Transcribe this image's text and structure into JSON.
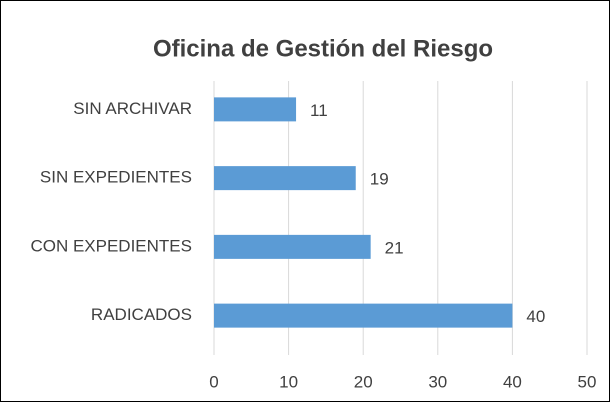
{
  "chart_data": {
    "type": "barh",
    "title": "Oficina de Gestión del Riesgo",
    "categories": [
      "SIN ARCHIVAR",
      "SIN EXPEDIENTES",
      "CON EXPEDIENTES",
      "RADICADOS"
    ],
    "values": [
      11,
      19,
      21,
      40
    ],
    "color": "#5b9bd5",
    "xlim": [
      0,
      50
    ],
    "xticks": [
      0,
      10,
      20,
      30,
      40,
      50
    ],
    "grid": true
  }
}
